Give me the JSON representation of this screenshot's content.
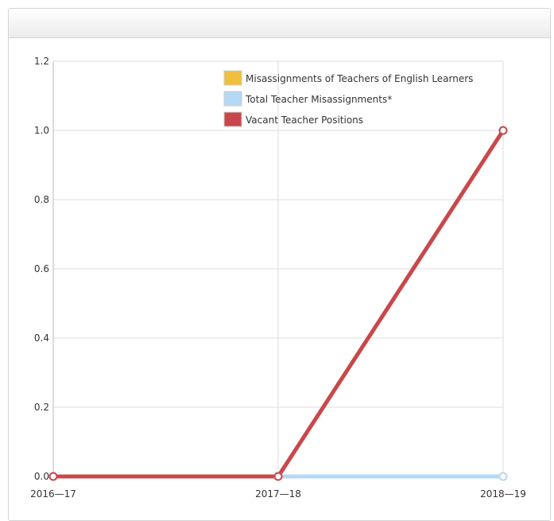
{
  "chart_data": {
    "type": "line",
    "title": "",
    "xlabel": "",
    "ylabel": "",
    "categories": [
      "2016—17",
      "2017—18",
      "2018—19"
    ],
    "y_ticks": [
      "0.0",
      "0.2",
      "0.4",
      "0.6",
      "0.8",
      "1.0",
      "1.2"
    ],
    "ylim": [
      0,
      1.2
    ],
    "grid": true,
    "legend_position": "top-right",
    "series": [
      {
        "name": "Misassignments of Teachers of English Learners",
        "values": [
          0,
          0,
          0
        ],
        "color": "#f0c03c"
      },
      {
        "name": "Total Teacher Misassignments*",
        "values": [
          0,
          0,
          0
        ],
        "color": "#b5d9f5"
      },
      {
        "name": "Vacant Teacher Positions",
        "values": [
          0,
          0,
          1
        ],
        "color": "#c9474a"
      }
    ]
  }
}
